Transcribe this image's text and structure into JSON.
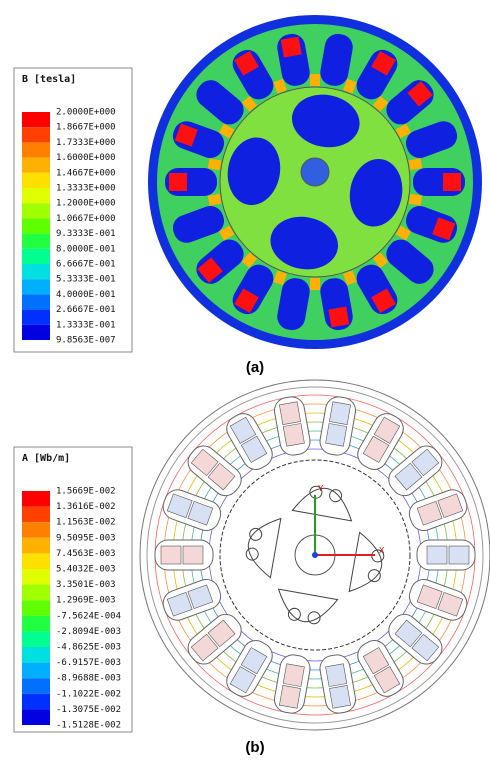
{
  "panels": [
    {
      "caption": "(a)",
      "legend_title": "B [tesla]",
      "labels": [
        "2.0000E+000",
        "1.8667E+000",
        "1.7333E+000",
        "1.6000E+000",
        "1.4667E+000",
        "1.3333E+000",
        "1.2000E+000",
        "1.0667E+000",
        "9.3333E-001",
        "8.0000E-001",
        "6.6667E-001",
        "5.3333E-001",
        "4.0000E-001",
        "2.6667E-001",
        "1.3333E-001",
        "9.8563E-007"
      ],
      "colors": [
        "#ff0000",
        "#ff4000",
        "#ff8000",
        "#ffb000",
        "#ffe000",
        "#e0ff00",
        "#a0ff00",
        "#60ff00",
        "#20ff40",
        "#00ff90",
        "#00e0e0",
        "#00b0ff",
        "#0070ff",
        "#0030ff",
        "#0000e0"
      ]
    },
    {
      "caption": "(b)",
      "legend_title": "A [Wb/m]",
      "labels": [
        "1.5669E-002",
        "1.3616E-002",
        "1.1563E-002",
        "9.5095E-003",
        "7.4563E-003",
        "5.4032E-003",
        "3.3501E-003",
        "1.2969E-003",
        "-7.5624E-004",
        "-2.8094E-003",
        "-4.8625E-003",
        "-6.9157E-003",
        "-8.9688E-003",
        "-1.1022E-002",
        "-1.3075E-002",
        "-1.5128E-002"
      ],
      "colors": [
        "#ff0000",
        "#ff4000",
        "#ff8000",
        "#ffb000",
        "#ffe000",
        "#e0ff00",
        "#a0ff00",
        "#60ff00",
        "#20ff40",
        "#00ff90",
        "#00e0e0",
        "#00b0ff",
        "#0070ff",
        "#0030ff",
        "#0000e0"
      ],
      "axis_labels": [
        "X",
        "Y"
      ]
    }
  ]
}
